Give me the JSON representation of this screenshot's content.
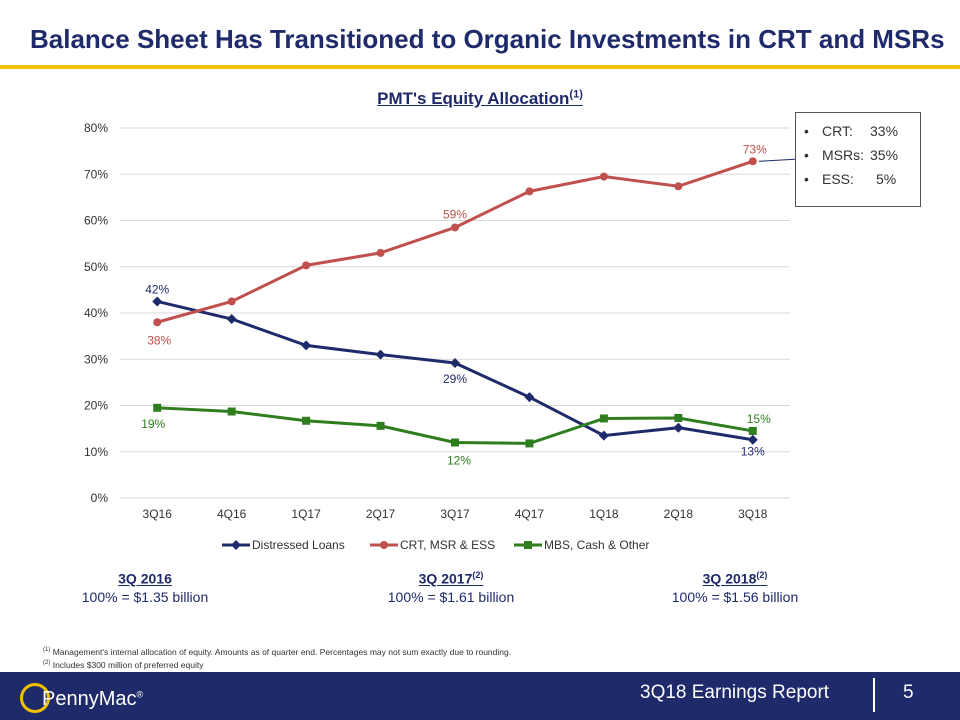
{
  "slide": {
    "title": "Balance Sheet Has Transitioned to Organic Investments in CRT and MSRs",
    "page_number": "5",
    "report_name": "3Q18 Earnings Report",
    "logo_text": "PennyMac",
    "logo_mark": "®"
  },
  "chart_data": {
    "type": "line",
    "title": "PMT's Equity Allocation",
    "title_sup": "(1)",
    "categories": [
      "3Q16",
      "4Q16",
      "1Q17",
      "2Q17",
      "3Q17",
      "4Q17",
      "1Q18",
      "2Q18",
      "3Q18"
    ],
    "ylim": [
      0,
      80
    ],
    "yticks": [
      "0%",
      "10%",
      "20%",
      "30%",
      "40%",
      "50%",
      "60%",
      "70%",
      "80%"
    ],
    "grid": true,
    "legend_position": "bottom",
    "series": [
      {
        "name": "Distressed Loans",
        "color": "#1f2a6b",
        "marker": "diamond",
        "values": [
          42.5,
          38.7,
          33.0,
          31.0,
          29.2,
          21.8,
          13.5,
          15.2,
          12.6
        ]
      },
      {
        "name": "CRT, MSR & ESS",
        "color": "#c0504d",
        "marker": "circle",
        "values": [
          38.0,
          42.5,
          50.3,
          53.0,
          58.5,
          66.3,
          69.5,
          67.4,
          72.8
        ]
      },
      {
        "name": "MBS, Cash & Other",
        "color": "#2e7d1e",
        "marker": "square",
        "values": [
          19.5,
          18.7,
          16.7,
          15.6,
          12.0,
          11.8,
          17.2,
          17.3,
          14.5
        ]
      }
    ],
    "data_labels": [
      {
        "series": 0,
        "index": 0,
        "text": "42%"
      },
      {
        "series": 0,
        "index": 4,
        "text": "29%"
      },
      {
        "series": 0,
        "index": 8,
        "text": "13%"
      },
      {
        "series": 1,
        "index": 0,
        "text": "38%"
      },
      {
        "series": 1,
        "index": 4,
        "text": "59%"
      },
      {
        "series": 1,
        "index": 8,
        "text": "73%"
      },
      {
        "series": 2,
        "index": 0,
        "text": "19%"
      },
      {
        "series": 2,
        "index": 4,
        "text": "12%"
      },
      {
        "series": 2,
        "index": 8,
        "text": "15%"
      }
    ]
  },
  "callout": {
    "items": [
      {
        "bullet": "•",
        "label": "CRT:",
        "value": "33%"
      },
      {
        "bullet": "•",
        "label": "MSRs:",
        "value": "35%"
      },
      {
        "bullet": "•",
        "label": "ESS:",
        "value": "5%"
      }
    ]
  },
  "summaries": [
    {
      "heading": "3Q 2016",
      "sup": "",
      "value": "100% = $1.35 billion"
    },
    {
      "heading": "3Q 2017",
      "sup": "(2)",
      "value": "100% = $1.61 billion"
    },
    {
      "heading": "3Q 2018",
      "sup": "(2)",
      "value": "100% = $1.56 billion"
    }
  ],
  "footnotes": [
    {
      "mark": "(1)",
      "text": "Management's internal allocation of equity.  Amounts as of quarter end.  Percentages may not sum exactly due to rounding."
    },
    {
      "mark": "(2)",
      "text": "Includes $300 million  of preferred equity"
    }
  ]
}
